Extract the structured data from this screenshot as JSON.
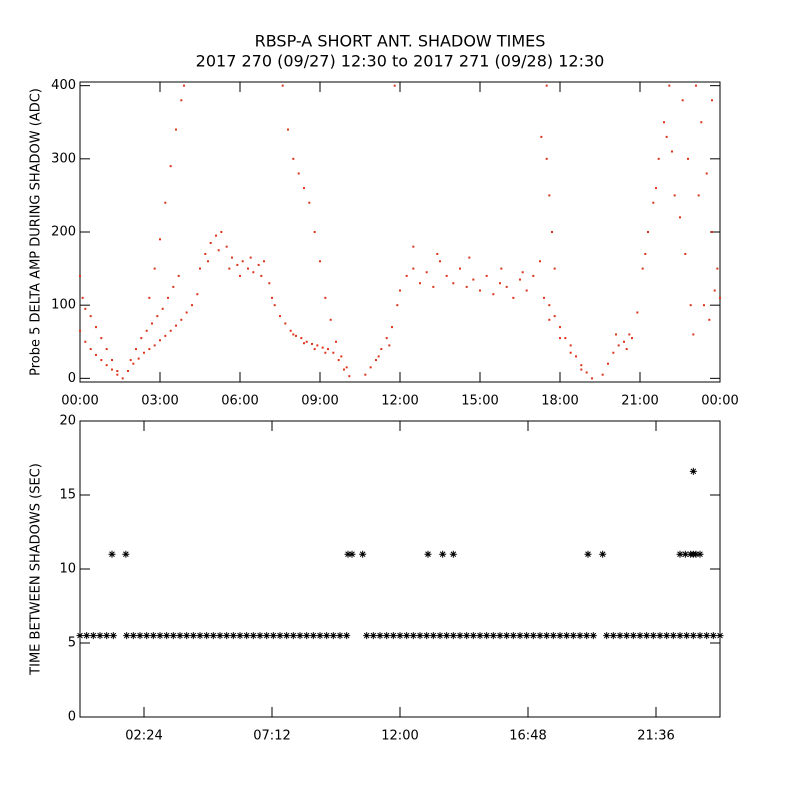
{
  "chart_data": [
    {
      "type": "scatter",
      "title": "RBSP-A SHORT ANT. SHADOW TIMES",
      "subtitle": "2017 270 (09/27) 12:30 to 2017 271 (09/28) 12:30",
      "y_label": "Probe 5 DELTA AMP DURING SHADOW (ADC)",
      "color": "#e0321a",
      "xlim": [
        0,
        24
      ],
      "xticks": [
        {
          "value": 0,
          "label": "00:00"
        },
        {
          "value": 3,
          "label": "03:00"
        },
        {
          "value": 6,
          "label": "06:00"
        },
        {
          "value": 9,
          "label": "09:00"
        },
        {
          "value": 12,
          "label": "12:00"
        },
        {
          "value": 15,
          "label": "15:00"
        },
        {
          "value": 18,
          "label": "18:00"
        },
        {
          "value": 21,
          "label": "21:00"
        },
        {
          "value": 24,
          "label": "00:00"
        }
      ],
      "ylim": [
        -5,
        405
      ],
      "yticks": [
        0,
        100,
        200,
        300,
        400
      ],
      "x": [
        0,
        0.1,
        0.2,
        0.4,
        0.6,
        0.8,
        1.0,
        1.2,
        1.4,
        1.6,
        0,
        0.2,
        0.4,
        0.6,
        0.8,
        1.0,
        1.2,
        1.4,
        1.8,
        2.0,
        2.2,
        2.4,
        2.6,
        2.8,
        3.0,
        3.2,
        3.4,
        3.6,
        3.8,
        4.0,
        4.2,
        4.4,
        1.9,
        2.1,
        2.3,
        2.5,
        2.7,
        2.9,
        3.1,
        3.3,
        3.5,
        3.7,
        2.6,
        2.8,
        3.0,
        3.2,
        3.4,
        3.6,
        3.8,
        3.9,
        4.5,
        4.7,
        4.9,
        5.1,
        5.3,
        5.5,
        5.7,
        5.9,
        6.1,
        6.3,
        6.5,
        6.7,
        6.9,
        7.1,
        4.8,
        5.2,
        5.6,
        6.0,
        6.4,
        6.8,
        7.2,
        7.3,
        7.5,
        7.7,
        7.9,
        8.1,
        8.3,
        8.5,
        8.7,
        8.9,
        9.1,
        9.3,
        9.5,
        9.7,
        9.9,
        10.1,
        8.0,
        8.4,
        8.8,
        9.2,
        7.6,
        7.8,
        8.0,
        8.2,
        8.4,
        8.6,
        8.8,
        9.0,
        9.2,
        9.4,
        9.6,
        9.8,
        10.0,
        10.7,
        10.9,
        11.1,
        11.3,
        11.5,
        11.7,
        11.2,
        11.6,
        11.8,
        11.9,
        12.0,
        12.25,
        12.5,
        12.75,
        13.0,
        13.25,
        13.5,
        13.75,
        14.0,
        14.25,
        14.5,
        14.75,
        15.0,
        15.25,
        15.5,
        15.75,
        16.0,
        16.25,
        16.5,
        16.75,
        17.0,
        17.25,
        12.5,
        13.4,
        14.6,
        15.8,
        16.6,
        17.4,
        17.6,
        17.8,
        18.0,
        18.2,
        18.4,
        18.6,
        18.8,
        19.0,
        19.2,
        17.6,
        18.0,
        18.4,
        18.8,
        17.3,
        17.5,
        17.6,
        17.7,
        17.8,
        17.5,
        19.6,
        19.8,
        20.0,
        20.2,
        20.4,
        20.6,
        20.1,
        20.5,
        20.7,
        20.9,
        21.1,
        21.3,
        21.5,
        21.7,
        21.9,
        22.1,
        21.2,
        21.6,
        22.0,
        22.2,
        22.3,
        22.5,
        22.7,
        22.9,
        23.0,
        22.6,
        22.8,
        23.1,
        23.3,
        23.5,
        23.7,
        23.9,
        23.4,
        23.6,
        23.8,
        24.0,
        23.2,
        23.7
      ],
      "values": [
        140,
        110,
        95,
        85,
        70,
        55,
        40,
        25,
        10,
        0,
        65,
        50,
        40,
        32,
        25,
        18,
        12,
        5,
        10,
        20,
        27,
        35,
        40,
        45,
        52,
        58,
        65,
        72,
        80,
        90,
        100,
        115,
        25,
        40,
        55,
        65,
        75,
        85,
        95,
        110,
        125,
        140,
        110,
        150,
        190,
        240,
        290,
        340,
        380,
        400,
        150,
        170,
        185,
        195,
        200,
        180,
        165,
        155,
        160,
        150,
        145,
        155,
        160,
        130,
        160,
        175,
        150,
        140,
        165,
        140,
        110,
        100,
        85,
        75,
        65,
        58,
        55,
        50,
        47,
        45,
        42,
        40,
        35,
        25,
        12,
        3,
        60,
        48,
        40,
        35,
        400,
        340,
        300,
        280,
        260,
        240,
        200,
        160,
        110,
        80,
        50,
        30,
        15,
        5,
        15,
        25,
        40,
        55,
        70,
        30,
        45,
        400,
        100,
        120,
        140,
        150,
        130,
        145,
        125,
        160,
        140,
        130,
        150,
        125,
        135,
        120,
        140,
        115,
        130,
        125,
        110,
        135,
        120,
        140,
        160,
        180,
        170,
        165,
        150,
        145,
        110,
        100,
        85,
        70,
        55,
        45,
        30,
        18,
        8,
        0,
        80,
        55,
        35,
        12,
        330,
        300,
        250,
        200,
        150,
        400,
        5,
        20,
        35,
        45,
        50,
        60,
        60,
        40,
        55,
        90,
        150,
        200,
        240,
        300,
        350,
        400,
        170,
        260,
        330,
        310,
        250,
        220,
        170,
        100,
        60,
        380,
        300,
        400,
        350,
        280,
        200,
        150,
        100,
        80,
        120,
        110,
        250,
        380
      ]
    },
    {
      "type": "scatter",
      "y_label": "TIME BETWEEN SHADOWS (SEC)",
      "color": "#000000",
      "xlim": [
        0,
        24
      ],
      "xticks": [
        {
          "value": 2.4,
          "label": "02:24"
        },
        {
          "value": 7.2,
          "label": "07:12"
        },
        {
          "value": 12,
          "label": "12:00"
        },
        {
          "value": 16.8,
          "label": "16:48"
        },
        {
          "value": 21.6,
          "label": "21:36"
        }
      ],
      "ylim": [
        0,
        20
      ],
      "yticks": [
        0,
        5,
        10,
        15,
        20
      ],
      "x": [
        0,
        0.25,
        0.5,
        0.75,
        1,
        1.25,
        1.75,
        2,
        2.25,
        2.5,
        2.75,
        3,
        3.25,
        3.5,
        3.75,
        4,
        4.25,
        4.5,
        4.75,
        5,
        5.25,
        5.5,
        5.75,
        6,
        6.25,
        6.5,
        6.75,
        7,
        7.25,
        7.5,
        7.75,
        8,
        8.25,
        8.5,
        8.75,
        9,
        9.25,
        9.5,
        9.75,
        10,
        10.75,
        11,
        11.25,
        11.5,
        11.75,
        12,
        12.25,
        12.5,
        12.75,
        13,
        13.25,
        13.5,
        13.75,
        14,
        14.25,
        14.5,
        14.75,
        15,
        15.25,
        15.5,
        15.75,
        16,
        16.25,
        16.5,
        16.75,
        17,
        17.25,
        17.5,
        17.75,
        18,
        18.25,
        18.5,
        18.75,
        19,
        19.25,
        19.75,
        20,
        20.25,
        20.5,
        20.75,
        21,
        21.25,
        21.5,
        21.75,
        22,
        22.25,
        22.5,
        22.75,
        23,
        23.25,
        23.5,
        23.75,
        24,
        1.2,
        1.72,
        10.05,
        10.2,
        10.6,
        13.05,
        13.6,
        14.0,
        19.05,
        19.6,
        22.5,
        22.7,
        22.9,
        23.0,
        23.1,
        23.25,
        23.0
      ],
      "values": [
        5.5,
        5.5,
        5.5,
        5.5,
        5.5,
        5.5,
        5.5,
        5.5,
        5.5,
        5.5,
        5.5,
        5.5,
        5.5,
        5.5,
        5.5,
        5.5,
        5.5,
        5.5,
        5.5,
        5.5,
        5.5,
        5.5,
        5.5,
        5.5,
        5.5,
        5.5,
        5.5,
        5.5,
        5.5,
        5.5,
        5.5,
        5.5,
        5.5,
        5.5,
        5.5,
        5.5,
        5.5,
        5.5,
        5.5,
        5.5,
        5.5,
        5.5,
        5.5,
        5.5,
        5.5,
        5.5,
        5.5,
        5.5,
        5.5,
        5.5,
        5.5,
        5.5,
        5.5,
        5.5,
        5.5,
        5.5,
        5.5,
        5.5,
        5.5,
        5.5,
        5.5,
        5.5,
        5.5,
        5.5,
        5.5,
        5.5,
        5.5,
        5.5,
        5.5,
        5.5,
        5.5,
        5.5,
        5.5,
        5.5,
        5.5,
        5.5,
        5.5,
        5.5,
        5.5,
        5.5,
        5.5,
        5.5,
        5.5,
        5.5,
        5.5,
        5.5,
        5.5,
        5.5,
        5.5,
        5.5,
        5.5,
        5.5,
        5.5,
        11,
        11,
        11,
        11,
        11,
        11,
        11,
        11,
        11,
        11,
        11,
        11,
        11,
        11,
        11,
        11,
        16.6
      ]
    }
  ]
}
